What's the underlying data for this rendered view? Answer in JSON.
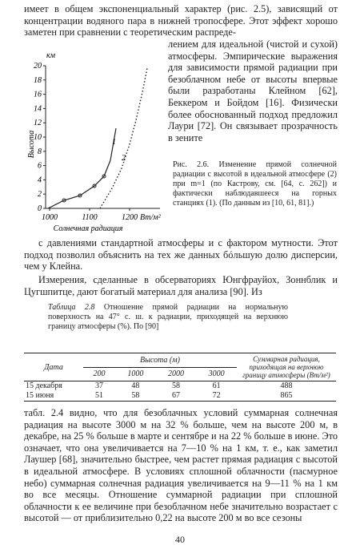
{
  "text_top_full": "имеет в общем экспоненциальный характер (рис. 2.5), зависящий от концентрации водяного пара в нижней тропосфере. Этот эффект хорошо заметен при сравнении с теоретическим распреде-",
  "text_top_column": "лением для идеальной (чистой и сухой) атмосферы. Эмпирические выражения для зависимости прямой радиации при безоблачном небе от высоты впервые были разработаны Клейном [62], Беккером и Бойдом [16]. Физически более обоснованный подход предложил Лаури [72]. Он связывает прозрачность в зените",
  "figure": {
    "y_unit": "км",
    "y_label": "Высота",
    "yticks": [
      "0",
      "2",
      "4",
      "6",
      "8",
      "10",
      "12",
      "14",
      "16",
      "18",
      "20"
    ],
    "xticks": [
      "1000",
      "1100",
      "1200"
    ],
    "x_unit": "Вт/м²",
    "x_label": "Солнечная радиация",
    "curve_labels": [
      "1",
      "2"
    ],
    "caption": "Рис. 2.6. Изменение прямой солнечной радиации с высотой в идеальной атмосфере (2) при m=1 (по Кастрову, см. [64, с. 262]) и фактически наблюдавшееся на горных станциях (1). (По данным из [10, 61, 81].)"
  },
  "paragraph_1": "с давлениями стандартной атмосферы и с фактором мутности. Этот подход позволил объяснить на тех же данных бóльшую долю дисперсии, чем у Клейна.",
  "paragraph_2": "Измерения, сделанные в обсерваториях Юнгфрауйох, Зоннблик и Цугшпитце, дают богатый материал для анализа [90]. Из",
  "table": {
    "caption_label": "Таблица 2.8",
    "caption": "Отношение прямой радиации на нормальную поверхность на 47° с. ш. к радиации, приходящей на верхнюю границу атмосферы (%). По [90]",
    "header": {
      "date": "Дата",
      "height": "Высота (м)",
      "heights": [
        "200",
        "1000",
        "2000",
        "3000"
      ],
      "total": "Суммарная радиация, приходящая на верхнюю границу атмосферы (Вт/м²)"
    },
    "rows": [
      [
        "15 декабря",
        37,
        48,
        58,
        61,
        488
      ],
      [
        "15 июня",
        51,
        58,
        67,
        72,
        865
      ]
    ]
  },
  "paragraph_3": "табл. 2.4 видно, что для безоблачных условий суммарная солнечная радиация на высоте 3000 м на 32 % больше, чем на высоте 200 м, в декабре, на 25 % больше в марте и сентябре и на 22 % больше в июне. Это означает, что она увеличивается на 7—10 % на 1 км, т. е., как заметил Лаушер [68], значительно быстрее, чем растет прямая радиация с высотой в идеальной атмосфере. В условиях сплошной облачности (пасмурное небо) суммарная солнечная радиация увеличивается на 9—11 % на 1 км во все месяцы. Отношение суммарной радиации при сплошной облачности к ее величине при безоблачном небе значительно возрастает с высотой — от приблизительно 0,22 на высоте 200 м во все сезоны",
  "page_number": "40"
}
